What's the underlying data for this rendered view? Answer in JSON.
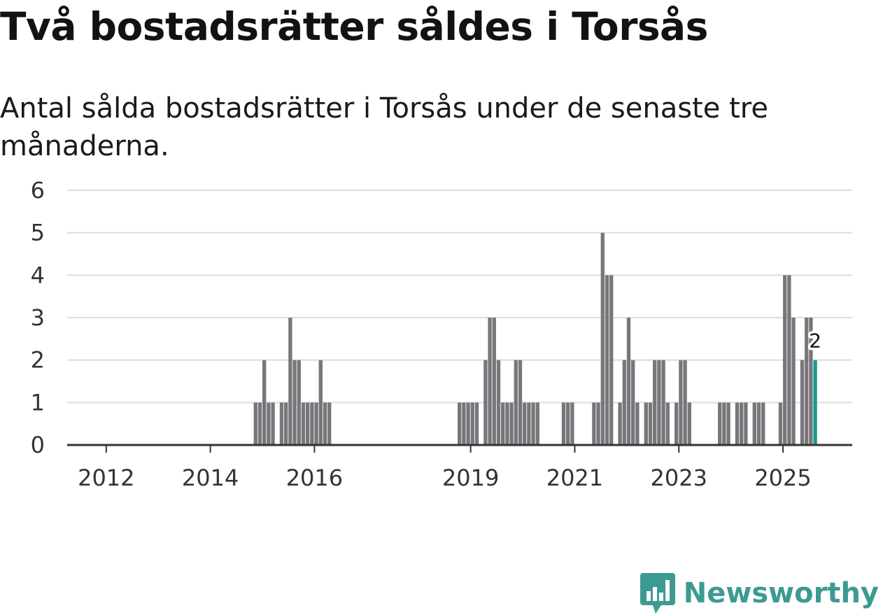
{
  "title": "Två bostadsrätter såldes i Torsås",
  "subtitle": "Antal sålda bostadsrätter i Torsås under de senaste tre månaderna.",
  "brand": {
    "name": "Newsworthy",
    "color": "#3d9a92",
    "icon": "newsworthy-chart-icon"
  },
  "colors": {
    "bar": "#77777b",
    "highlight": "#1a9a90",
    "grid": "#dddddd",
    "axis": "#333333"
  },
  "chart_data": {
    "type": "bar",
    "title": "Två bostadsrätter såldes i Torsås",
    "xlabel": "",
    "ylabel": "",
    "ylim": [
      0,
      6
    ],
    "yticks": [
      "0",
      "1",
      "2",
      "3",
      "4",
      "5",
      "6"
    ],
    "xlim": [
      2011.25,
      2026.33
    ],
    "xticks": [
      {
        "label": "2012",
        "x": 2012
      },
      {
        "label": "2014",
        "x": 2014
      },
      {
        "label": "2016",
        "x": 2016
      },
      {
        "label": "2019",
        "x": 2019
      },
      {
        "label": "2021",
        "x": 2021
      },
      {
        "label": "2023",
        "x": 2023
      },
      {
        "label": "2025",
        "x": 2025
      }
    ],
    "grid": true,
    "bar_width_months": 1,
    "series": [
      {
        "name": "Sålda bostadsrätter",
        "points": [
          [
            "2014-11",
            1
          ],
          [
            "2014-12",
            1
          ],
          [
            "2015-01",
            2
          ],
          [
            "2015-02",
            1
          ],
          [
            "2015-03",
            1
          ],
          [
            "2015-05",
            1
          ],
          [
            "2015-06",
            1
          ],
          [
            "2015-07",
            3
          ],
          [
            "2015-08",
            2
          ],
          [
            "2015-09",
            2
          ],
          [
            "2015-10",
            1
          ],
          [
            "2015-11",
            1
          ],
          [
            "2015-12",
            1
          ],
          [
            "2016-01",
            1
          ],
          [
            "2016-02",
            2
          ],
          [
            "2016-03",
            1
          ],
          [
            "2016-04",
            1
          ],
          [
            "2018-10",
            1
          ],
          [
            "2018-11",
            1
          ],
          [
            "2018-12",
            1
          ],
          [
            "2019-01",
            1
          ],
          [
            "2019-02",
            1
          ],
          [
            "2019-04",
            2
          ],
          [
            "2019-05",
            3
          ],
          [
            "2019-06",
            3
          ],
          [
            "2019-07",
            2
          ],
          [
            "2019-08",
            1
          ],
          [
            "2019-09",
            1
          ],
          [
            "2019-10",
            1
          ],
          [
            "2019-11",
            2
          ],
          [
            "2019-12",
            2
          ],
          [
            "2020-01",
            1
          ],
          [
            "2020-02",
            1
          ],
          [
            "2020-03",
            1
          ],
          [
            "2020-04",
            1
          ],
          [
            "2020-10",
            1
          ],
          [
            "2020-11",
            1
          ],
          [
            "2020-12",
            1
          ],
          [
            "2021-05",
            1
          ],
          [
            "2021-06",
            1
          ],
          [
            "2021-07",
            5
          ],
          [
            "2021-08",
            4
          ],
          [
            "2021-09",
            4
          ],
          [
            "2021-11",
            1
          ],
          [
            "2021-12",
            2
          ],
          [
            "2022-01",
            3
          ],
          [
            "2022-02",
            2
          ],
          [
            "2022-03",
            1
          ],
          [
            "2022-05",
            1
          ],
          [
            "2022-06",
            1
          ],
          [
            "2022-07",
            2
          ],
          [
            "2022-08",
            2
          ],
          [
            "2022-09",
            2
          ],
          [
            "2022-10",
            1
          ],
          [
            "2022-12",
            1
          ],
          [
            "2023-01",
            2
          ],
          [
            "2023-02",
            2
          ],
          [
            "2023-03",
            1
          ],
          [
            "2023-10",
            1
          ],
          [
            "2023-11",
            1
          ],
          [
            "2023-12",
            1
          ],
          [
            "2024-02",
            1
          ],
          [
            "2024-03",
            1
          ],
          [
            "2024-04",
            1
          ],
          [
            "2024-06",
            1
          ],
          [
            "2024-07",
            1
          ],
          [
            "2024-08",
            1
          ],
          [
            "2024-12",
            1
          ],
          [
            "2025-01",
            4
          ],
          [
            "2025-02",
            4
          ],
          [
            "2025-03",
            3
          ],
          [
            "2025-05",
            2
          ],
          [
            "2025-06",
            3
          ],
          [
            "2025-07",
            3
          ],
          [
            "2025-08",
            2
          ]
        ]
      }
    ],
    "highlight": {
      "month": "2025-08",
      "value": 2,
      "label": "2"
    }
  }
}
